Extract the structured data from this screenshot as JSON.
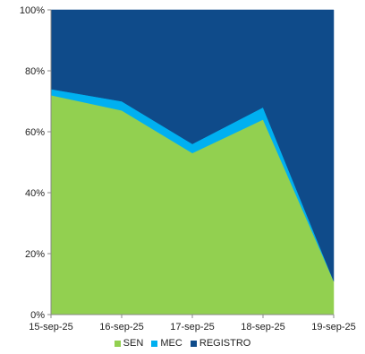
{
  "chart_data": {
    "type": "area",
    "stacked": true,
    "x": [
      "15-sep-25",
      "16-sep-25",
      "17-sep-25",
      "18-sep-25",
      "19-sep-25"
    ],
    "series": [
      {
        "name": "SEN",
        "values": [
          72,
          67,
          53,
          64,
          11
        ],
        "color": "#92d050"
      },
      {
        "name": "MEC",
        "values": [
          2,
          3,
          3,
          4,
          0
        ],
        "color": "#00b0f0"
      },
      {
        "name": "REGISTRO",
        "values": [
          26,
          30,
          44,
          32,
          89
        ],
        "color": "#0f4b8a"
      }
    ],
    "ylim": [
      0,
      100
    ],
    "yticks": [
      "0%",
      "20%",
      "40%",
      "60%",
      "80%",
      "100%"
    ],
    "grid": false,
    "legend": "bottom"
  }
}
